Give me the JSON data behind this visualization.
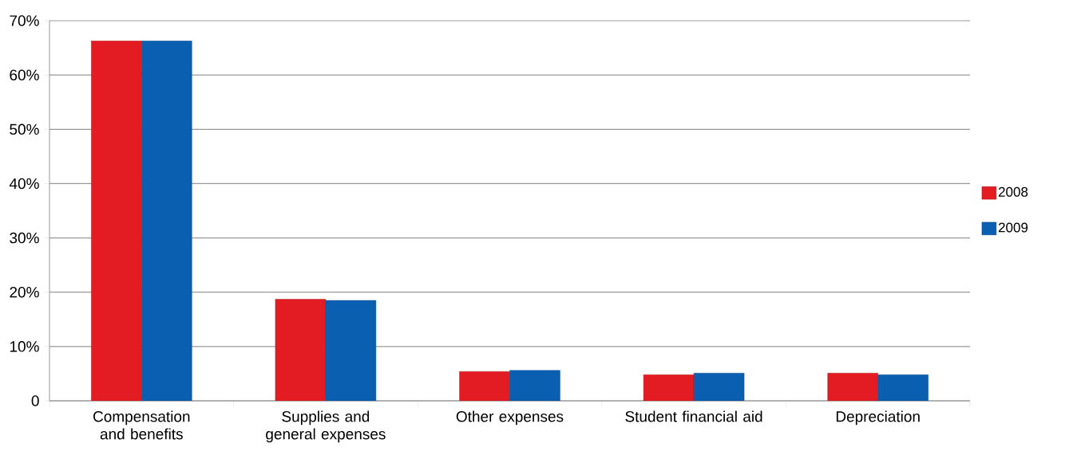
{
  "chart_data": {
    "type": "bar",
    "categories": [
      "Compensation and benefits",
      "Supplies and general expenses",
      "Other expenses",
      "Student financial aid",
      "Depreciation"
    ],
    "series": [
      {
        "name": "2008",
        "color": "#e31b23",
        "values": [
          66.3,
          18.7,
          5.4,
          4.8,
          5.1
        ]
      },
      {
        "name": "2009",
        "color": "#0a5fb0",
        "values": [
          66.3,
          18.5,
          5.6,
          5.1,
          4.8
        ]
      }
    ],
    "ylim": [
      0,
      70
    ],
    "yticks": [
      0,
      {
        "value": 10,
        "label": "10%"
      },
      {
        "value": 20,
        "label": "20%"
      },
      {
        "value": 30,
        "label": "30%"
      },
      {
        "value": 40,
        "label": "40%"
      },
      {
        "value": 50,
        "label": "50%"
      },
      {
        "value": 60,
        "label": "60%"
      },
      {
        "value": 70,
        "label": "70%"
      }
    ],
    "grid": "y",
    "legend": "right"
  }
}
